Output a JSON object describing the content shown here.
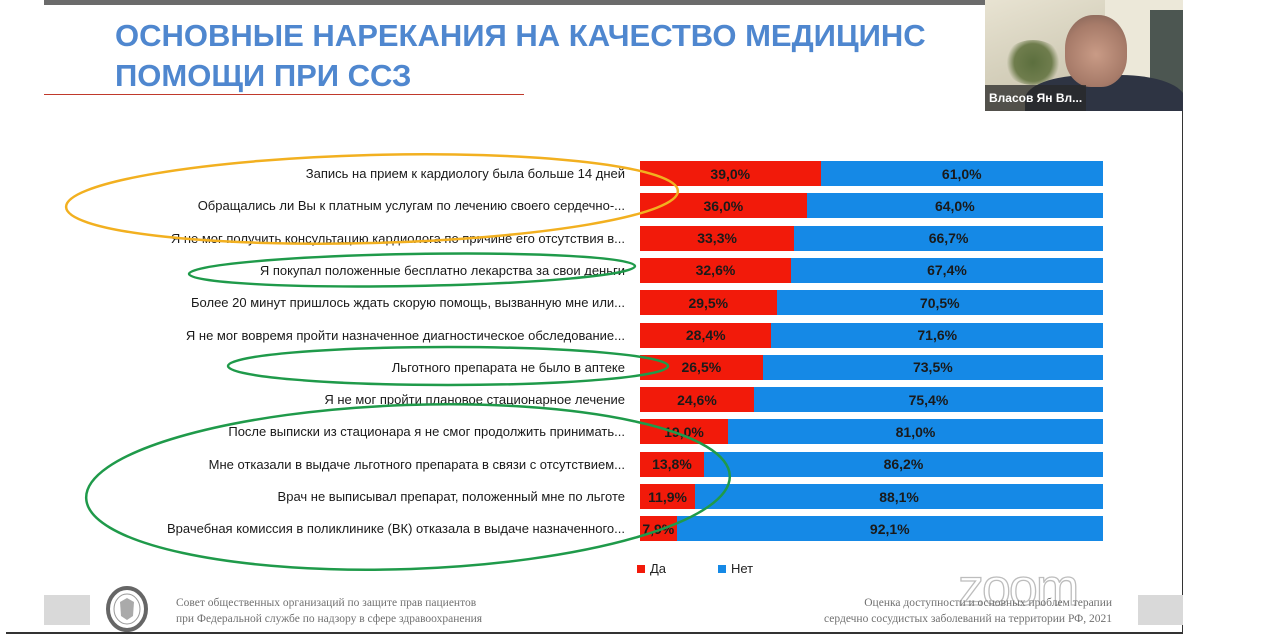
{
  "slide": {
    "title_line1": "ОСНОВНЫЕ НАРЕКАНИЯ НА КАЧЕСТВО МЕДИЦИНС",
    "title_line2": "ПОМОЩИ ПРИ ССЗ",
    "footer_left_line1": "Совет общественных организаций по защите прав пациентов",
    "footer_left_line2": "при Федеральной службе по надзору в сфере здравоохранения",
    "footer_right_line1": "Оценка доступности и основных проблем терапии",
    "footer_right_line2": "сердечно  сосудистых заболеваний  на территории РФ, 2021",
    "logo": "emblem-seal"
  },
  "video": {
    "participant_name": "Власов Ян Вл...",
    "watermark": "zoom"
  },
  "colors": {
    "yes": "#f21a0a",
    "no": "#1589e6",
    "title": "#4f87cf",
    "highlight_orange": "#f2b020",
    "highlight_green": "#1f9a4a"
  },
  "chart_data": {
    "type": "bar",
    "orientation": "horizontal",
    "stacked": true,
    "categories": [
      "Запись на прием к кардиологу была больше 14 дней",
      "Обращались ли Вы к платным услугам по лечению своего сердечно-...",
      "Я не мог получить консультацию кардиолога по причине его отсутствия в...",
      "Я покупал положенные бесплатно лекарства за свои деньги",
      "Более 20 минут пришлось ждать скорую помощь, вызванную мне или...",
      "Я не мог вовремя пройти назначенное диагностическое обследование...",
      "Льготного препарата не было в аптеке",
      "Я не мог пройти плановое стационарное лечение",
      "После выписки из стационара я не смог продолжить принимать...",
      "Мне отказали в выдаче льготного препарата в связи с отсутствием...",
      "Врач не выписывал препарат, положенный мне по льготе",
      "Врачебная комиссия в поликлинике (ВК) отказала в выдаче назначенного..."
    ],
    "series": [
      {
        "name": "Да",
        "values": [
          39.0,
          36.0,
          33.3,
          32.6,
          29.5,
          28.4,
          26.5,
          24.6,
          19.0,
          13.8,
          11.9,
          7.9
        ],
        "labels": [
          "39,0%",
          "36,0%",
          "33,3%",
          "32,6%",
          "29,5%",
          "28,4%",
          "26,5%",
          "24,6%",
          "19,0%",
          "13,8%",
          "11,9%",
          "7,9%"
        ]
      },
      {
        "name": "Нет",
        "values": [
          61.0,
          64.0,
          66.7,
          67.4,
          70.5,
          71.6,
          73.5,
          75.4,
          81.0,
          86.2,
          88.1,
          92.1
        ],
        "labels": [
          "61,0%",
          "64,0%",
          "66,7%",
          "67,4%",
          "70,5%",
          "71,6%",
          "73,5%",
          "75,4%",
          "81,0%",
          "86,2%",
          "88,1%",
          "92,1%"
        ]
      }
    ],
    "xlim": [
      0,
      100
    ],
    "legend": "bottom",
    "grid": false,
    "highlighted_groups": [
      {
        "color": "orange",
        "rows": [
          0,
          1,
          2
        ]
      },
      {
        "color": "green",
        "rows": [
          3
        ]
      },
      {
        "color": "green",
        "rows": [
          6
        ]
      },
      {
        "color": "green",
        "rows": [
          8,
          9,
          10,
          11
        ]
      }
    ]
  }
}
